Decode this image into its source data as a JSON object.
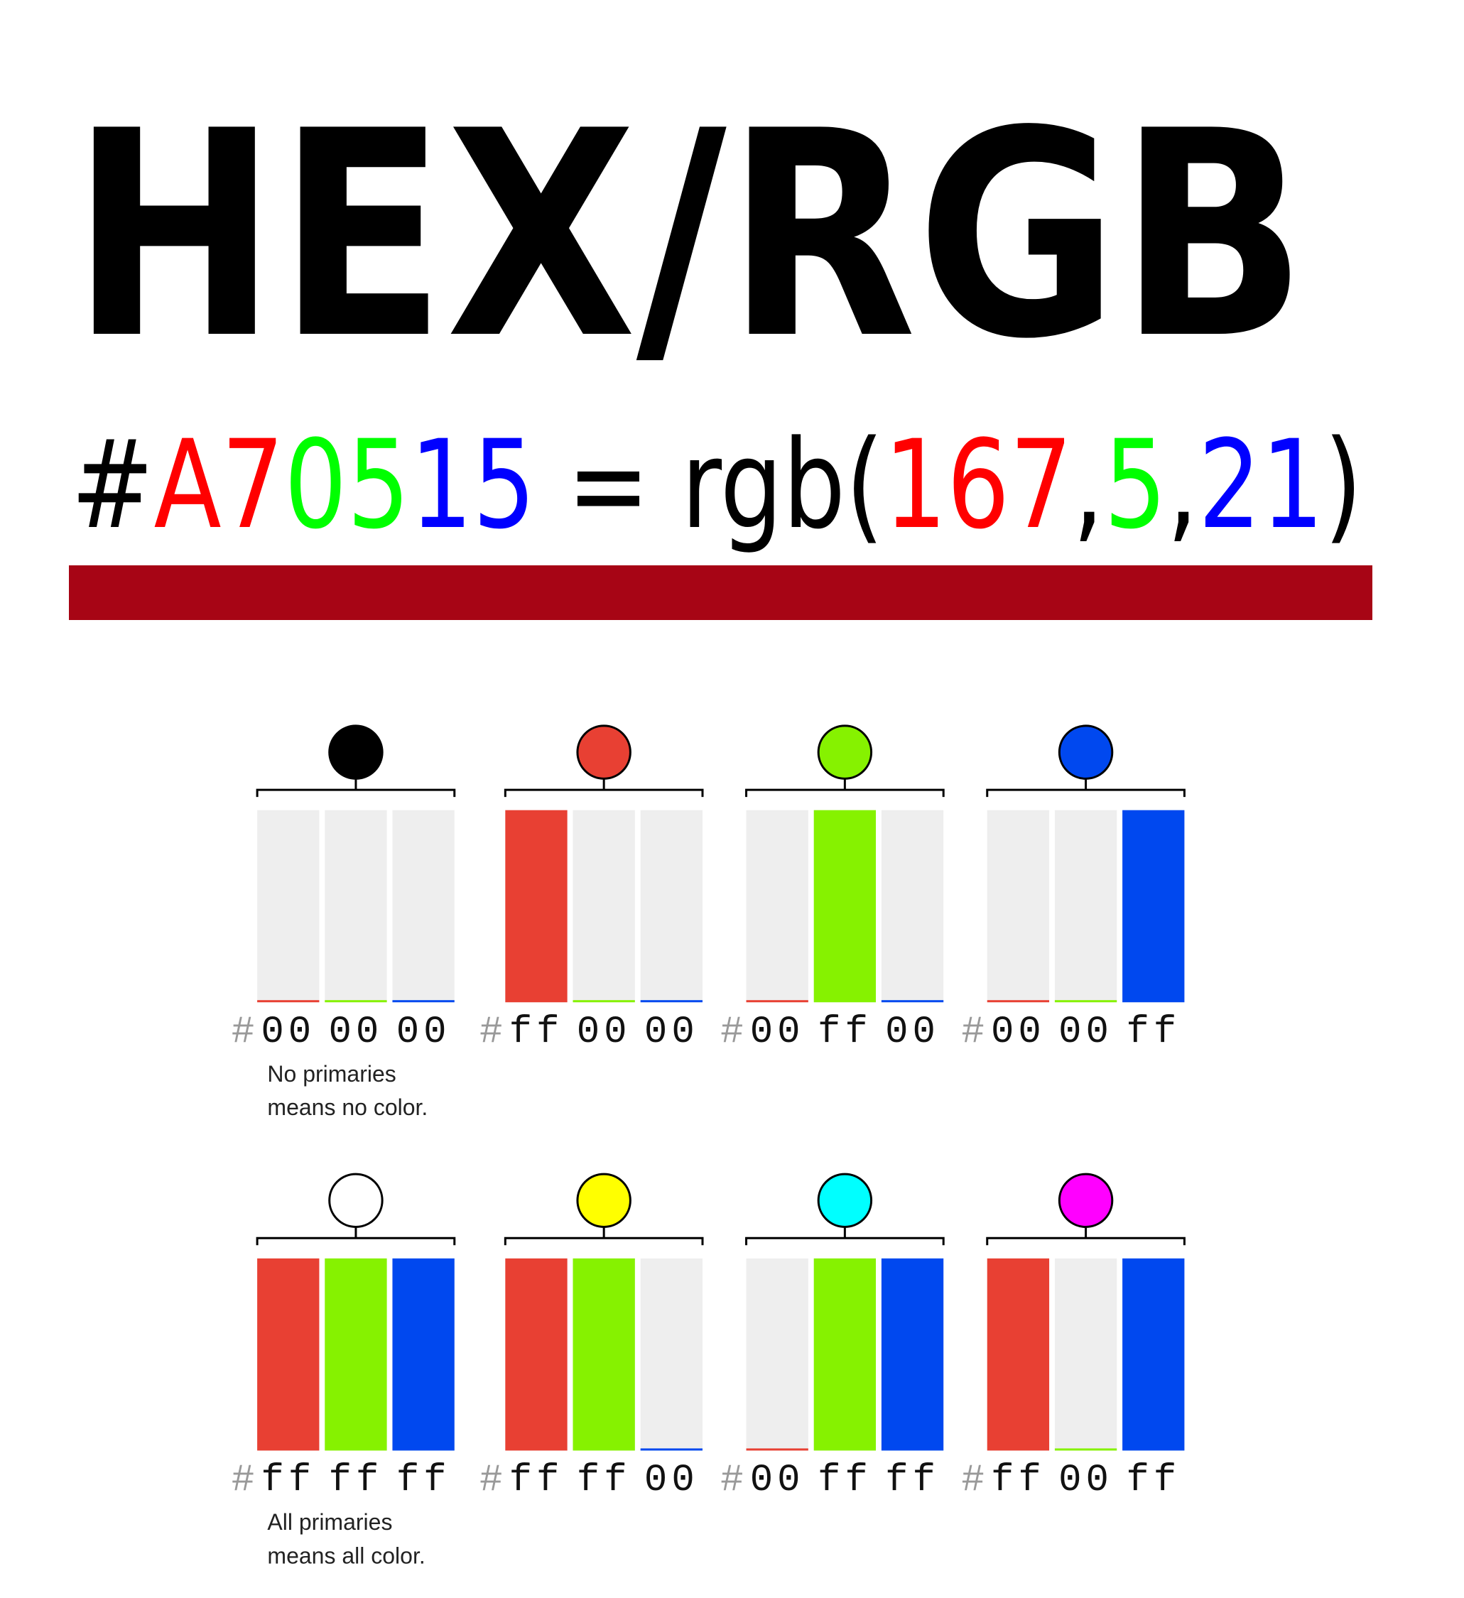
{
  "title": "HEX/RGB",
  "formula": [
    {
      "text": "#",
      "color": "#000000"
    },
    {
      "text": "A7",
      "color": "#ff0000"
    },
    {
      "text": "05",
      "color": "#00ff00"
    },
    {
      "text": "15",
      "color": "#0000ff"
    },
    {
      "text": " = rgb(",
      "color": "#000000"
    },
    {
      "text": "167",
      "color": "#ff0000"
    },
    {
      "text": ",",
      "color": "#000000"
    },
    {
      "text": "5",
      "color": "#00ff00"
    },
    {
      "text": ",",
      "color": "#000000"
    },
    {
      "text": "21",
      "color": "#0000ff"
    },
    {
      "text": ")",
      "color": "#000000"
    }
  ],
  "swatch_color": "#a70515",
  "channel_colors": [
    "#e84033",
    "#86f200",
    "#0048ef"
  ],
  "empty_color": "#eeeeee",
  "rows": [
    {
      "swatches": [
        {
          "circle_color": "#000000",
          "prefix": "#",
          "hex": [
            "00",
            "00",
            "00"
          ],
          "note": [
            "No primaries",
            "means no color."
          ]
        },
        {
          "circle_color": "#e84033",
          "prefix": "#",
          "hex": [
            "ff",
            "00",
            "00"
          ]
        },
        {
          "circle_color": "#86f200",
          "prefix": "#",
          "hex": [
            "00",
            "ff",
            "00"
          ]
        },
        {
          "circle_color": "#0048ef",
          "prefix": "#",
          "hex": [
            "00",
            "00",
            "ff"
          ]
        }
      ]
    },
    {
      "swatches": [
        {
          "circle_color": "#ffffff",
          "prefix": "#",
          "hex": [
            "ff",
            "ff",
            "ff"
          ],
          "note": [
            "All primaries",
            "means all color."
          ]
        },
        {
          "circle_color": "#ffff00",
          "prefix": "#",
          "hex": [
            "ff",
            "ff",
            "00"
          ]
        },
        {
          "circle_color": "#00ffff",
          "prefix": "#",
          "hex": [
            "00",
            "ff",
            "ff"
          ]
        },
        {
          "circle_color": "#ff00ff",
          "prefix": "#",
          "hex": [
            "ff",
            "00",
            "ff"
          ]
        }
      ]
    }
  ]
}
